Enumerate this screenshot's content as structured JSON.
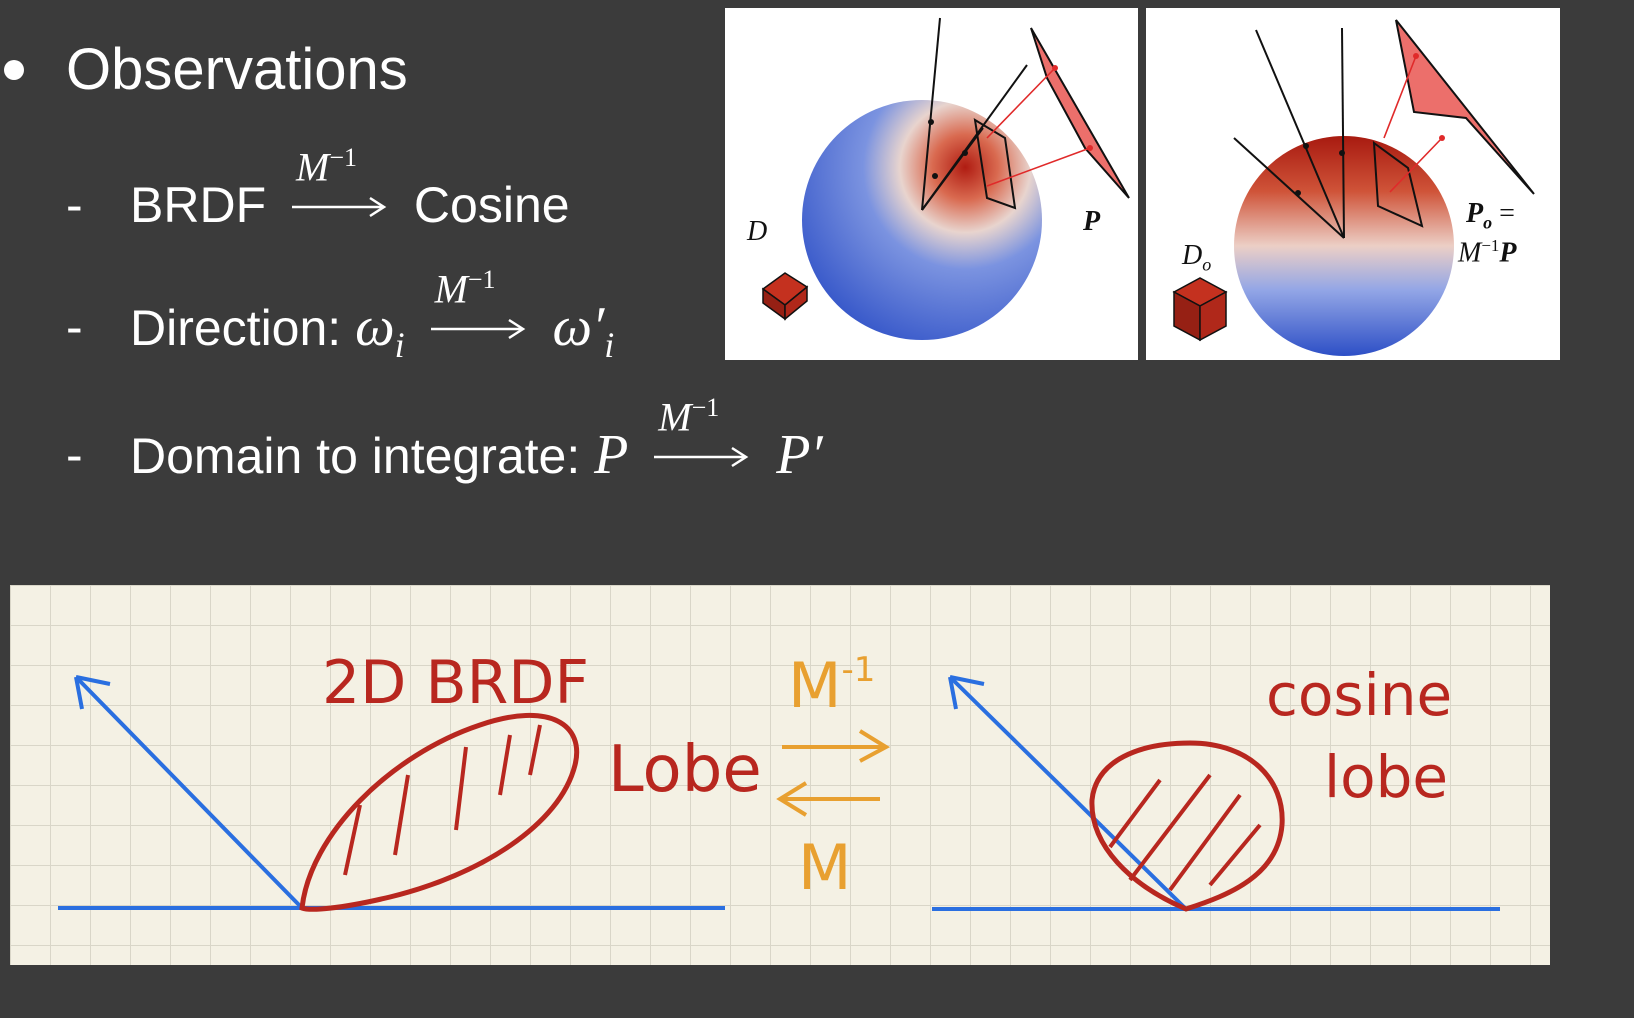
{
  "heading": "Observations",
  "items": [
    {
      "prefix": "BRDF",
      "arrow_label": "M",
      "arrow_exp": "−1",
      "suffix": "Cosine"
    },
    {
      "prefix": "Direction:",
      "math_from": "ω",
      "from_sub": "i",
      "arrow_label": "M",
      "arrow_exp": "−1",
      "math_to": "ω′",
      "to_sub": "i"
    },
    {
      "prefix": "Domain to integrate:",
      "math_from": "P",
      "arrow_label": "M",
      "arrow_exp": "−1",
      "math_to": "P′"
    }
  ],
  "dash": "-",
  "figure_left": {
    "label_d": "D",
    "label_p": "P"
  },
  "figure_right": {
    "label_do": "D",
    "label_do_sub": "o",
    "label_po": "P",
    "label_po_sub": "o",
    "label_po_eq": "=",
    "label_m": "M",
    "label_m_exp": "−1",
    "label_mp": "P"
  },
  "notebook": {
    "left_title": "2D BRDF",
    "left_word": "Lobe",
    "mid_top": "M",
    "mid_top_exp": "-1",
    "mid_bottom": "M",
    "right_word_1": "cosine",
    "right_word_2": "lobe"
  },
  "colors": {
    "background": "#3b3b3b",
    "ink_red": "#b8271f",
    "ink_blue": "#2a6fe0",
    "ink_orange": "#e8a030",
    "sphere_blue": "#2d50c8",
    "plane_red": "#ec6f6b"
  }
}
